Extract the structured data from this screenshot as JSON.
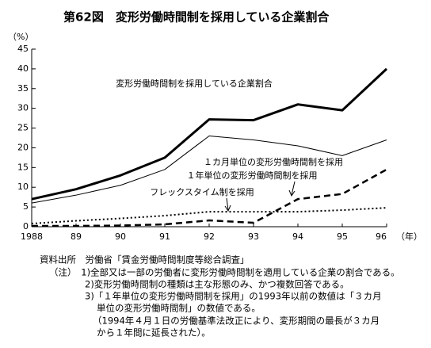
{
  "chart_data": {
    "type": "line",
    "title": "第62図　変形労働時間制を採用している企業割合",
    "y_unit": "（%）",
    "x_unit": "（年）",
    "categories": [
      "1988",
      "89",
      "90",
      "91",
      "92",
      "93",
      "94",
      "95",
      "96"
    ],
    "ylim": [
      0,
      45
    ],
    "yticks": [
      0,
      5,
      10,
      15,
      20,
      25,
      30,
      35,
      40,
      45
    ],
    "grid": false,
    "series": [
      {
        "name": "変形労働時間制を採用している企業割合",
        "color": "#000000",
        "width": 3,
        "dash": "none",
        "values": [
          7,
          9.5,
          13,
          17.5,
          27.2,
          27,
          31,
          29.5,
          40
        ]
      },
      {
        "name": "１カ月単位の変形労働時間制を採用",
        "color": "#000000",
        "width": 1,
        "dash": "none",
        "values": [
          6,
          8,
          10.5,
          14.5,
          23,
          22,
          20.5,
          18,
          22
        ]
      },
      {
        "name": "１年単位の変形労働時間制を採用",
        "color": "#000000",
        "width": 2.5,
        "dash": "8 5",
        "values": [
          0.2,
          0.2,
          0.3,
          0.6,
          1.6,
          1,
          7,
          8.3,
          14.5
        ]
      },
      {
        "name": "フレックスタイム制を採用",
        "color": "#000000",
        "width": 2,
        "dash": "2 3",
        "values": [
          0.8,
          1.5,
          2.1,
          2.8,
          3.8,
          3.8,
          3.8,
          4.2,
          4.8
        ]
      }
    ]
  },
  "notes": [
    "資料出所　労働省「賃金労働時間制度等総合調査」",
    "（注）　1)全部又は一部の労働者に変形労働時間制を適用している企業の割合である。",
    "2)変形労働時間制の種類は主な形態のみ、かつ複数回答である。",
    "3)「１年単位の変形労働時間制を採用」の1993年以前の数値は「３カ月",
    "単位の変形労働時間制」の数値である。",
    "（1994年４月１日の労働基準法改正により、変形期間の最長が３カ月",
    "から１年間に延長された）。"
  ]
}
